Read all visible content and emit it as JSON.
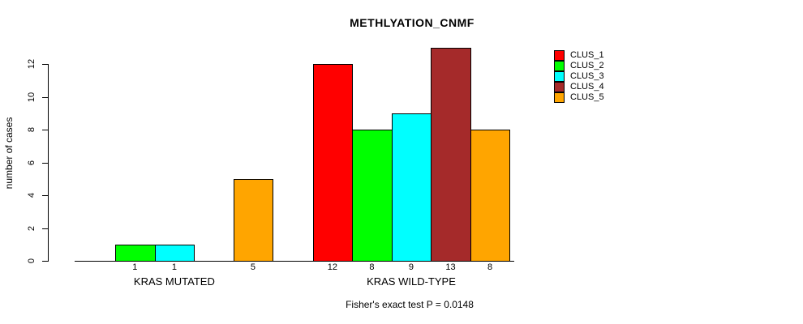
{
  "title": "METHLYATION_CNMF",
  "y_axis_label": "number of cases",
  "annotation": "Fisher's exact test P = 0.0148",
  "chart_data": {
    "type": "bar",
    "title": "METHLYATION_CNMF",
    "xlabel": "",
    "ylabel": "number of cases",
    "categories": [
      "KRAS MUTATED",
      "KRAS WILD-TYPE"
    ],
    "series": [
      {
        "name": "CLUS_1",
        "color": "#FF0000",
        "values": [
          0,
          12
        ]
      },
      {
        "name": "CLUS_2",
        "color": "#00FF00",
        "values": [
          1,
          8
        ]
      },
      {
        "name": "CLUS_3",
        "color": "#00FFFF",
        "values": [
          1,
          9
        ]
      },
      {
        "name": "CLUS_4",
        "color": "#A52A2A",
        "values": [
          0,
          13
        ]
      },
      {
        "name": "CLUS_5",
        "color": "#FFA500",
        "values": [
          5,
          8
        ]
      }
    ],
    "yticks": [
      0,
      2,
      4,
      6,
      8,
      10,
      12
    ],
    "ylim": [
      0,
      13
    ],
    "grid": false,
    "legend_position": "right",
    "bar_value_labels": true,
    "zero_bars_hidden": true,
    "annotation": "Fisher's exact test P = 0.0148",
    "text_color": "#000000",
    "background_color": "#FFFFFF"
  }
}
